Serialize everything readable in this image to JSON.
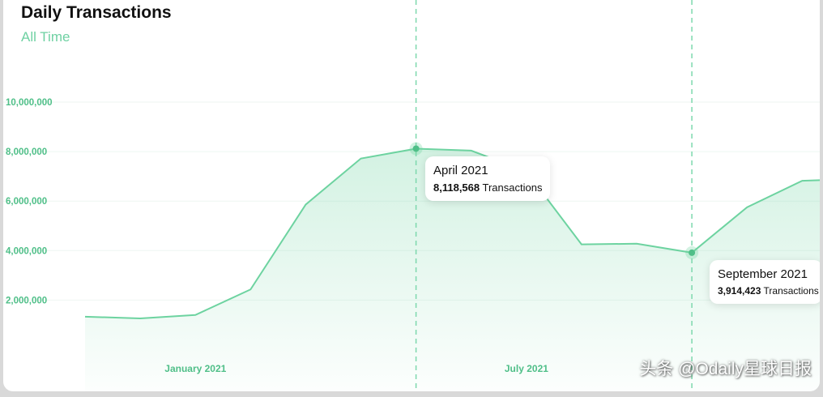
{
  "header": {
    "title": "Daily Transactions",
    "subtitle": "All Time"
  },
  "chart_data": {
    "type": "area",
    "title": "Daily Transactions",
    "subtitle": "All Time",
    "y_ticks": [
      2000000,
      4000000,
      6000000,
      8000000,
      10000000
    ],
    "y_tick_labels": [
      "2,000,000",
      "4,000,000",
      "6,000,000",
      "8,000,000",
      "10,000,000"
    ],
    "ylim": [
      0,
      10000000
    ],
    "x_tick_labels": [
      "January 2021",
      "July 2021"
    ],
    "x": [
      "2020-10",
      "2020-11",
      "2020-12",
      "2021-01",
      "2021-02",
      "2021-03",
      "2021-04",
      "2021-05",
      "2021-06",
      "2021-07",
      "2021-08",
      "2021-09",
      "2021-10",
      "2021-11",
      "2021-12"
    ],
    "series": [
      {
        "values": [
          1330000,
          1260000,
          1400000,
          2430000,
          5860000,
          7720000,
          8118568,
          8040000,
          7200000,
          4250000,
          4280000,
          3914423,
          5750000,
          6820000,
          6900000
        ]
      }
    ],
    "grid": true,
    "line_color": "#6dd3a0",
    "highlight_markers": [
      "2021-04",
      "2021-09"
    ]
  },
  "tooltips": [
    {
      "month": "April 2021",
      "value": "8,118,568",
      "unit": "Transactions"
    },
    {
      "month": "September 2021",
      "value": "3,914,423",
      "unit": "Transactions"
    }
  ],
  "watermark": "头条 @Odaily星球日报"
}
